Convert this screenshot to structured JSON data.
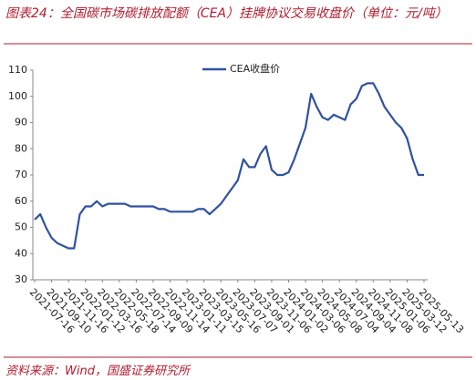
{
  "chart_data": {
    "type": "line",
    "title": "图表24：全国碳市场碳排放配额（CEA）挂牌协议交易收盘价（单位：元/吨）",
    "source": "资料来源：Wind，国盛证券研究所",
    "categories": [
      "2021-07-16",
      null,
      null,
      "2021-09-10",
      null,
      null,
      "2021-11-16",
      null,
      null,
      "2022-01-12",
      null,
      null,
      "2022-03-16",
      null,
      null,
      "2022-05-18",
      null,
      null,
      "2022-07-14",
      null,
      null,
      "2022-09-09",
      null,
      null,
      "2022-11-14",
      null,
      null,
      "2023-01-11",
      null,
      null,
      "2023-03-15",
      null,
      null,
      "2023-05-16",
      null,
      null,
      "2023-07-07",
      null,
      null,
      "2023-09-01",
      null,
      null,
      "2023-11-06",
      null,
      null,
      "2024-01-02",
      null,
      null,
      "2024-03-06",
      null,
      null,
      "2024-05-08",
      null,
      null,
      "2024-07-04",
      null,
      null,
      "2024-09-04",
      null,
      null,
      "2024-11-08",
      null,
      null,
      "2025-01-06",
      null,
      null,
      "2025-03-12",
      null,
      null,
      "2025-05-13"
    ],
    "series": [
      {
        "name": "CEA收盘价",
        "color": "#2f52a0",
        "values": [
          53,
          55,
          50,
          46,
          44,
          43,
          42,
          42,
          55,
          58,
          58,
          60,
          58,
          59,
          59,
          59,
          59,
          58,
          58,
          58,
          58,
          58,
          57,
          57,
          56,
          56,
          56,
          56,
          56,
          57,
          57,
          55,
          57,
          59,
          62,
          65,
          68,
          76,
          73,
          73,
          78,
          81,
          72,
          70,
          70,
          71,
          76,
          82,
          88,
          101,
          96,
          92,
          91,
          93,
          92,
          91,
          97,
          99,
          104,
          105,
          105,
          101,
          96,
          93,
          90,
          88,
          84,
          76,
          70,
          70
        ]
      }
    ],
    "ylim": [
      30,
      110
    ],
    "yticks": [
      30,
      40,
      50,
      60,
      70,
      80,
      90,
      100,
      110
    ],
    "grid": false,
    "legend": "top"
  }
}
